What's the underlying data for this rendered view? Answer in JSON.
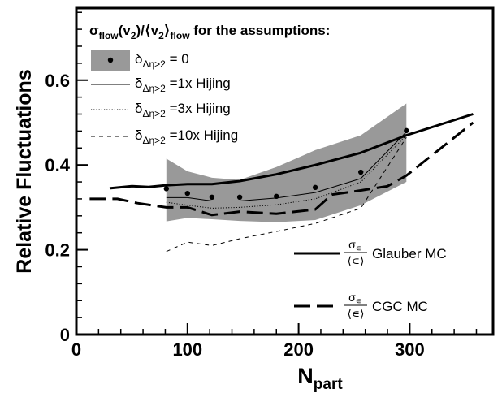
{
  "chart_data": {
    "type": "line",
    "xlabel": "N",
    "xlabel_sub": "part",
    "ylabel": "Relative Fluctuations",
    "xlim": [
      0,
      375
    ],
    "ylim": [
      0,
      0.77
    ],
    "x_ticks": [
      0,
      100,
      200,
      300
    ],
    "y_ticks": [
      0,
      0.2,
      0.4,
      0.6
    ],
    "x_tick_labels": [
      "0",
      "100",
      "200",
      "300"
    ],
    "y_tick_labels": [
      "0",
      "0.2",
      "0.4",
      "0.6"
    ],
    "grid": false,
    "legend_position": "top-left",
    "legend_title": {
      "sigma": "σ",
      "sigma_sub": "flow",
      "ratio_open": "(v",
      "ratio_sub_2": "2",
      "ratio_mid": ")/⟨v",
      "ratio_sub_2b": "2",
      "ratio_close": "⟩",
      "ratio_sub_flow": "flow",
      "tail": " for the assumptions:"
    },
    "legend_entries": [
      {
        "delta": "δ",
        "sub": "Δη>2",
        "text": " = 0"
      },
      {
        "delta": "δ",
        "sub": "Δη>2",
        "text": " =1x Hijing"
      },
      {
        "delta": "δ",
        "sub": "Δη>2",
        "text": " =3x Hijing"
      },
      {
        "delta": "δ",
        "sub": "Δη>2",
        "text": " =10x Hijing"
      }
    ],
    "annotations": {
      "glauber": {
        "num": "σ",
        "num_sub": "∊",
        "den": "⟨∊⟩",
        "label": "Glauber MC"
      },
      "cgc": {
        "num": "σ",
        "num_sub": "∊",
        "den": "⟨∊⟩",
        "label": "CGC MC"
      }
    },
    "band": {
      "name": "δΔη>2 = 0",
      "x": [
        81,
        100,
        122,
        147,
        180,
        215,
        256,
        297
      ],
      "lower": [
        0.267,
        0.275,
        0.272,
        0.268,
        0.265,
        0.27,
        0.305,
        0.36
      ],
      "upper": [
        0.415,
        0.385,
        0.37,
        0.365,
        0.395,
        0.435,
        0.47,
        0.545
      ]
    },
    "points": {
      "x": [
        81,
        100,
        122,
        147,
        180,
        215,
        256,
        297
      ],
      "y": [
        0.344,
        0.333,
        0.324,
        0.324,
        0.326,
        0.347,
        0.383,
        0.481
      ]
    },
    "series": [
      {
        "name": "δΔη>2 =1x Hijing",
        "style": "thin-solid",
        "x": [
          81,
          100,
          122,
          147,
          180,
          215,
          256,
          297
        ],
        "y": [
          0.323,
          0.323,
          0.315,
          0.315,
          0.322,
          0.335,
          0.368,
          0.478
        ]
      },
      {
        "name": "δΔη>2 =3x Hijing",
        "style": "dotted",
        "x": [
          81,
          100,
          122,
          147,
          180,
          215,
          256,
          297
        ],
        "y": [
          0.312,
          0.305,
          0.298,
          0.3,
          0.306,
          0.32,
          0.36,
          0.47
        ]
      },
      {
        "name": "δΔη>2 =10x Hijing",
        "style": "thin-dashed",
        "x": [
          81,
          100,
          122,
          147,
          180,
          215,
          256,
          297
        ],
        "y": [
          0.196,
          0.218,
          0.21,
          0.226,
          0.243,
          0.262,
          0.298,
          0.465
        ]
      },
      {
        "name": "Glauber MC",
        "style": "thick-solid",
        "x": [
          30,
          50,
          65,
          80,
          100,
          122,
          147,
          180,
          215,
          255,
          297,
          357
        ],
        "y": [
          0.345,
          0.35,
          0.348,
          0.352,
          0.355,
          0.355,
          0.362,
          0.378,
          0.4,
          0.428,
          0.47,
          0.52
        ]
      },
      {
        "name": "CGC MC",
        "style": "thick-dashed",
        "x": [
          12,
          37,
          55,
          81,
          100,
          122,
          147,
          180,
          215,
          230,
          256,
          280,
          297,
          357
        ],
        "y": [
          0.32,
          0.32,
          0.31,
          0.3,
          0.3,
          0.282,
          0.29,
          0.285,
          0.295,
          0.33,
          0.34,
          0.35,
          0.375,
          0.5
        ]
      }
    ]
  }
}
